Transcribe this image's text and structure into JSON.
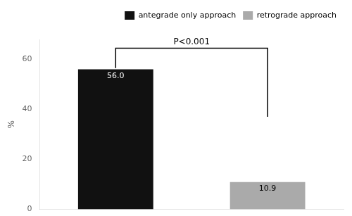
{
  "chart_data": {
    "type": "bar",
    "categories": [
      "antegrade only approach",
      "retrograde approach"
    ],
    "values": [
      56.0,
      10.9
    ],
    "value_labels": [
      "56.0",
      "10.9"
    ],
    "colors": [
      "#111111",
      "#aaaaaa"
    ],
    "ylabel": "%",
    "ylim": [
      0,
      68
    ],
    "yticks": [
      0,
      20,
      40,
      60
    ],
    "grid": false,
    "legend": "upper right",
    "tick_labels": "y",
    "data_labels": true,
    "annotations": [
      {
        "text": "P<0.001",
        "y_left": 56.5,
        "y_right": 37.0,
        "y_top": 64.5
      }
    ]
  }
}
